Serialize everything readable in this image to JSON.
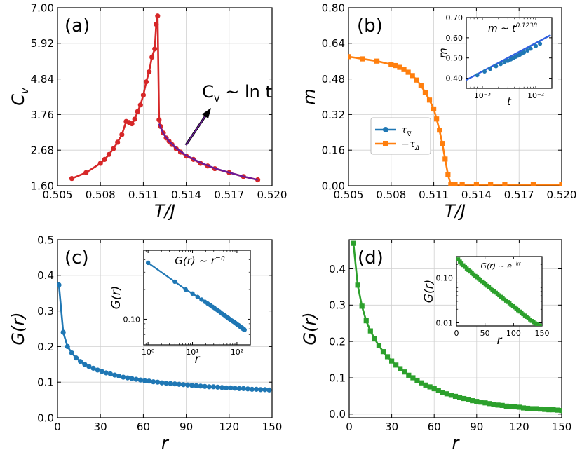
{
  "chart_data": [
    {
      "panel_label": "(a)",
      "type": "line",
      "xlabel": "T/J",
      "ylabel": "C_v",
      "xlim": [
        0.505,
        0.52
      ],
      "ylim": [
        1.6,
        7.0
      ],
      "xticks": [
        0.505,
        0.508,
        0.511,
        0.514,
        0.517,
        0.52
      ],
      "xtick_labels": [
        "0.505",
        "0.508",
        "0.511",
        "0.514",
        "0.517",
        "0.520"
      ],
      "yticks": [
        1.6,
        2.68,
        3.76,
        4.84,
        5.92,
        7.0
      ],
      "ytick_labels": [
        "1.60",
        "2.68",
        "3.76",
        "4.84",
        "5.92",
        "7.00"
      ],
      "grid": true,
      "annotation": "C_v ~ ln t",
      "series": [
        {
          "color": "#d62728",
          "marker": "circle",
          "x": [
            0.506,
            0.507,
            0.508,
            0.5083,
            0.5086,
            0.5089,
            0.5092,
            0.5095,
            0.5098,
            0.51,
            0.5102,
            0.5104,
            0.5106,
            0.5108,
            0.511,
            0.5112,
            0.5114,
            0.5116,
            0.5118,
            0.5119,
            0.512,
            0.5121,
            0.5122,
            0.5124,
            0.5126,
            0.5128,
            0.513,
            0.5133,
            0.5136,
            0.514,
            0.5145,
            0.515,
            0.5155,
            0.516,
            0.517,
            0.518,
            0.519
          ],
          "y": [
            1.82,
            2.0,
            2.28,
            2.4,
            2.55,
            2.72,
            2.92,
            3.15,
            3.55,
            3.52,
            3.48,
            3.62,
            3.85,
            4.05,
            4.35,
            4.75,
            5.05,
            5.5,
            5.75,
            6.5,
            6.75,
            3.6,
            3.4,
            3.2,
            3.05,
            2.95,
            2.85,
            2.72,
            2.62,
            2.5,
            2.4,
            2.28,
            2.2,
            2.12,
            2.0,
            1.88,
            1.78
          ]
        },
        {
          "color": "#6a1b9a",
          "marker": "none",
          "x": [
            0.5121,
            0.5124,
            0.5128,
            0.5133,
            0.514,
            0.515,
            0.516,
            0.517,
            0.518,
            0.519
          ],
          "y": [
            3.48,
            3.18,
            2.95,
            2.74,
            2.52,
            2.3,
            2.13,
            2.0,
            1.88,
            1.78
          ]
        }
      ]
    },
    {
      "panel_label": "(b)",
      "type": "line",
      "xlabel": "T/J",
      "ylabel": "m",
      "xlim": [
        0.505,
        0.52
      ],
      "ylim": [
        0.0,
        0.8
      ],
      "xticks": [
        0.505,
        0.508,
        0.511,
        0.514,
        0.517,
        0.52
      ],
      "xtick_labels": [
        "0.505",
        "0.508",
        "0.511",
        "0.514",
        "0.517",
        "0.520"
      ],
      "yticks": [
        0.0,
        0.16,
        0.32,
        0.48,
        0.64,
        0.8
      ],
      "ytick_labels": [
        "0.00",
        "0.16",
        "0.32",
        "0.48",
        "0.64",
        "0.80"
      ],
      "grid": true,
      "legend_position": "center-left",
      "series": [
        {
          "name": "τ∇",
          "color": "#1f77b4",
          "marker": "circle",
          "x": [],
          "y": []
        },
        {
          "name": "−τΔ",
          "color": "#ff7f0e",
          "marker": "square",
          "x": [
            0.505,
            0.506,
            0.507,
            0.508,
            0.5083,
            0.5086,
            0.5089,
            0.5092,
            0.5095,
            0.5098,
            0.5101,
            0.5104,
            0.5107,
            0.511,
            0.5112,
            0.5114,
            0.5116,
            0.5118,
            0.512,
            0.5122,
            0.5125,
            0.513,
            0.514,
            0.515,
            0.516,
            0.518,
            0.52
          ],
          "y": [
            0.58,
            0.57,
            0.56,
            0.545,
            0.54,
            0.532,
            0.522,
            0.51,
            0.495,
            0.475,
            0.45,
            0.42,
            0.385,
            0.345,
            0.3,
            0.25,
            0.19,
            0.12,
            0.05,
            0.005,
            0.005,
            0.005,
            0.005,
            0.005,
            0.005,
            0.005,
            0.005
          ]
        }
      ],
      "inset": {
        "annotation": "m ~ t^0.1238",
        "xlabel": "t",
        "ylabel": "m",
        "xscale": "log",
        "xlim": [
          0.0005,
          0.02
        ],
        "ylim": [
          0.35,
          0.7
        ],
        "xticks": [
          0.001,
          0.01
        ],
        "xtick_labels": [
          "10⁻³",
          "10⁻²"
        ],
        "yticks": [
          0.4,
          0.5,
          0.6,
          0.7
        ],
        "ytick_labels": [
          "0.40",
          "0.50",
          "0.60",
          "0.70"
        ],
        "points_x": [
          0.0008,
          0.0011,
          0.0014,
          0.0018,
          0.0022,
          0.0026,
          0.003,
          0.0034,
          0.0038,
          0.0042,
          0.0046,
          0.005,
          0.0055,
          0.006,
          0.007,
          0.008,
          0.01,
          0.012
        ],
        "points_y": [
          0.415,
          0.433,
          0.446,
          0.459,
          0.47,
          0.479,
          0.486,
          0.493,
          0.5,
          0.506,
          0.511,
          0.516,
          0.522,
          0.527,
          0.537,
          0.546,
          0.559,
          0.57
        ],
        "fit_x": [
          0.00045,
          0.019
        ],
        "fit_y": [
          0.385,
          0.613
        ],
        "point_color": "#1f77b4",
        "fit_color": "#3060e0"
      }
    },
    {
      "panel_label": "(c)",
      "type": "line",
      "xlabel": "r",
      "ylabel": "G(r)",
      "xlim": [
        0,
        150
      ],
      "ylim": [
        0.0,
        0.5
      ],
      "xticks": [
        0,
        30,
        60,
        90,
        120,
        150
      ],
      "xtick_labels": [
        "0",
        "30",
        "60",
        "90",
        "120",
        "150"
      ],
      "yticks": [
        0.0,
        0.1,
        0.2,
        0.3,
        0.4,
        0.5
      ],
      "ytick_labels": [
        "0.0",
        "0.1",
        "0.2",
        "0.3",
        "0.4",
        "0.5"
      ],
      "grid": true,
      "series": [
        {
          "color": "#1f77b4",
          "marker": "circle",
          "x": [
            1,
            4,
            7,
            10,
            13,
            16,
            19,
            22,
            25,
            28,
            31,
            34,
            37,
            40,
            43,
            46,
            49,
            52,
            55,
            58,
            61,
            64,
            67,
            70,
            73,
            76,
            79,
            82,
            85,
            88,
            91,
            94,
            97,
            100,
            103,
            106,
            109,
            112,
            115,
            118,
            121,
            124,
            127,
            130,
            133,
            136,
            139,
            142,
            145,
            148
          ],
          "y": [
            0.373,
            0.24,
            0.2,
            0.182,
            0.168,
            0.158,
            0.15,
            0.144,
            0.139,
            0.134,
            0.13,
            0.126,
            0.123,
            0.12,
            0.117,
            0.114,
            0.112,
            0.11,
            0.108,
            0.106,
            0.104,
            0.103,
            0.101,
            0.1,
            0.098,
            0.097,
            0.096,
            0.095,
            0.094,
            0.093,
            0.092,
            0.091,
            0.09,
            0.089,
            0.088,
            0.087,
            0.087,
            0.086,
            0.085,
            0.084,
            0.084,
            0.083,
            0.082,
            0.082,
            0.081,
            0.08,
            0.08,
            0.079,
            0.079,
            0.078
          ]
        }
      ],
      "inset": {
        "annotation": "G(r) ~ r^−η",
        "xlabel": "r",
        "ylabel": "G(r)",
        "xscale": "log",
        "yscale": "log",
        "xlim": [
          0.8,
          200
        ],
        "ylim": [
          0.055,
          0.5
        ],
        "xticks": [
          1,
          10,
          100
        ],
        "xtick_labels": [
          "10⁰",
          "10¹",
          "10²"
        ],
        "yticks": [
          0.1
        ],
        "ytick_labels": [
          "0.10"
        ],
        "points_x": [
          1,
          4,
          7,
          10,
          13,
          16,
          19,
          22,
          25,
          28,
          31,
          34,
          37,
          40,
          43,
          46,
          49,
          52,
          55,
          58,
          61,
          64,
          67,
          70,
          73,
          76,
          79,
          82,
          85,
          88,
          91,
          94,
          97,
          100,
          103,
          106,
          109,
          112,
          115,
          118,
          121,
          124,
          127,
          130,
          133,
          136,
          139,
          142,
          145,
          148
        ],
        "points_y": [
          0.373,
          0.24,
          0.2,
          0.182,
          0.168,
          0.158,
          0.15,
          0.144,
          0.139,
          0.134,
          0.13,
          0.126,
          0.123,
          0.12,
          0.117,
          0.114,
          0.112,
          0.11,
          0.108,
          0.106,
          0.104,
          0.103,
          0.101,
          0.1,
          0.098,
          0.097,
          0.096,
          0.095,
          0.094,
          0.093,
          0.092,
          0.091,
          0.09,
          0.089,
          0.088,
          0.087,
          0.087,
          0.086,
          0.085,
          0.084,
          0.084,
          0.083,
          0.082,
          0.082,
          0.081,
          0.08,
          0.08,
          0.079,
          0.079,
          0.078
        ],
        "point_color": "#1f77b4"
      }
    },
    {
      "panel_label": "(d)",
      "type": "line",
      "xlabel": "r",
      "ylabel": "G(r)",
      "xlim": [
        0,
        150
      ],
      "ylim": [
        -0.01,
        0.48
      ],
      "xticks": [
        0,
        30,
        60,
        90,
        120,
        150
      ],
      "xtick_labels": [
        "0",
        "30",
        "60",
        "90",
        "120",
        "150"
      ],
      "yticks": [
        0.0,
        0.1,
        0.2,
        0.3,
        0.4
      ],
      "ytick_labels": [
        "0.0",
        "0.1",
        "0.2",
        "0.3",
        "0.4"
      ],
      "grid": true,
      "series": [
        {
          "color": "#2ca02c",
          "marker": "square",
          "x": [
            3,
            6,
            9,
            12,
            15,
            18,
            21,
            24,
            27,
            30,
            33,
            36,
            39,
            42,
            45,
            48,
            51,
            54,
            57,
            60,
            63,
            66,
            69,
            72,
            75,
            78,
            81,
            84,
            87,
            90,
            93,
            96,
            99,
            102,
            105,
            108,
            111,
            114,
            117,
            120,
            123,
            126,
            129,
            132,
            135,
            138,
            141,
            144,
            147,
            150
          ],
          "y": [
            0.47,
            0.355,
            0.297,
            0.257,
            0.229,
            0.207,
            0.188,
            0.172,
            0.158,
            0.146,
            0.135,
            0.125,
            0.116,
            0.107,
            0.1,
            0.093,
            0.086,
            0.08,
            0.075,
            0.07,
            0.065,
            0.06,
            0.056,
            0.052,
            0.049,
            0.046,
            0.043,
            0.04,
            0.037,
            0.035,
            0.033,
            0.031,
            0.029,
            0.027,
            0.025,
            0.024,
            0.022,
            0.021,
            0.02,
            0.019,
            0.017,
            0.016,
            0.015,
            0.015,
            0.014,
            0.013,
            0.012,
            0.012,
            0.011,
            0.01
          ]
        }
      ],
      "inset": {
        "annotation": "G(r) ~ e^−kr",
        "xlabel": "r",
        "ylabel": "G(r)",
        "yscale": "log",
        "xlim": [
          0,
          150
        ],
        "ylim": [
          0.0085,
          0.3
        ],
        "xticks": [
          0,
          50,
          100,
          150
        ],
        "xtick_labels": [
          "0",
          "50",
          "100",
          "150"
        ],
        "yticks": [
          0.01,
          0.1
        ],
        "ytick_labels": [
          "0.01",
          "0.10"
        ],
        "points_x": [
          3,
          6,
          9,
          12,
          15,
          18,
          21,
          24,
          27,
          30,
          33,
          36,
          39,
          42,
          45,
          48,
          51,
          54,
          57,
          60,
          63,
          66,
          69,
          72,
          75,
          78,
          81,
          84,
          87,
          90,
          93,
          96,
          99,
          102,
          105,
          108,
          111,
          114,
          117,
          120,
          123,
          126,
          129,
          132,
          135,
          138,
          141,
          144,
          147,
          150
        ],
        "points_y": [
          0.26,
          0.232,
          0.21,
          0.192,
          0.176,
          0.162,
          0.15,
          0.139,
          0.129,
          0.12,
          0.111,
          0.103,
          0.096,
          0.089,
          0.083,
          0.077,
          0.072,
          0.067,
          0.062,
          0.058,
          0.054,
          0.05,
          0.047,
          0.044,
          0.041,
          0.038,
          0.035,
          0.033,
          0.031,
          0.029,
          0.027,
          0.025,
          0.0235,
          0.022,
          0.0205,
          0.019,
          0.0178,
          0.0166,
          0.0155,
          0.0145,
          0.0135,
          0.0126,
          0.0118,
          0.011,
          0.0103,
          0.0097,
          0.0092,
          0.0088,
          0.0085,
          0.0082
        ],
        "point_color": "#2ca02c"
      }
    }
  ]
}
